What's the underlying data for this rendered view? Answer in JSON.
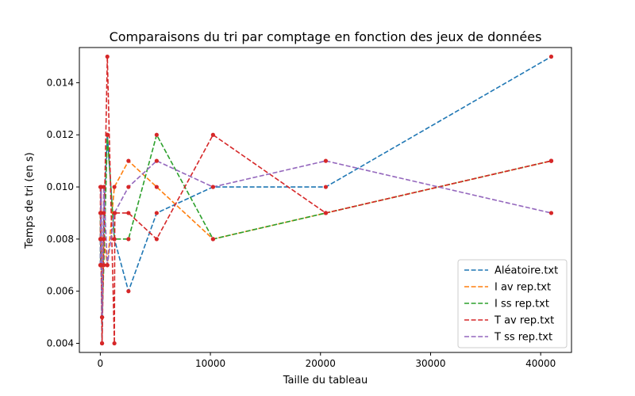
{
  "chart_data": {
    "type": "line",
    "title": "Comparaisons du tri par comptage en fonction des jeux de données",
    "xlabel": "Taille du tableau",
    "ylabel": "Temps de tri (en s)",
    "xlim": [
      -1900,
      42800
    ],
    "ylim": [
      0.00365,
      0.01535
    ],
    "xticks": [
      0,
      10000,
      20000,
      30000,
      40000
    ],
    "xtick_labels": [
      "0",
      "10000",
      "20000",
      "30000",
      "40000"
    ],
    "yticks": [
      0.004,
      0.006,
      0.008,
      0.01,
      0.012,
      0.014
    ],
    "ytick_labels": [
      "0.004",
      "0.006",
      "0.008",
      "0.010",
      "0.012",
      "0.014"
    ],
    "grid": false,
    "legend_position": "lower-right",
    "marker_color": "#d62728",
    "series": [
      {
        "name": "Aléatoire.txt",
        "color": "#1f77b4",
        "x": [
          10,
          20,
          40,
          80,
          160,
          320,
          640,
          1280,
          2560,
          5120,
          10240,
          20480,
          40960
        ],
        "y": [
          0.007,
          0.008,
          0.01,
          0.007,
          0.004,
          0.009,
          0.012,
          0.008,
          0.006,
          0.009,
          0.01,
          0.01,
          0.015
        ]
      },
      {
        "name": "I av rep.txt",
        "color": "#ff7f0e",
        "x": [
          10,
          20,
          40,
          80,
          160,
          320,
          640,
          1280,
          2560,
          5120,
          10240,
          20480,
          40960
        ],
        "y": [
          0.008,
          0.009,
          0.007,
          0.01,
          0.005,
          0.008,
          0.007,
          0.01,
          0.011,
          0.01,
          0.008,
          0.009,
          0.011
        ]
      },
      {
        "name": "I ss rep.txt",
        "color": "#2ca02c",
        "x": [
          10,
          20,
          40,
          80,
          160,
          320,
          640,
          1280,
          2560,
          5120,
          10240,
          20480,
          40960
        ],
        "y": [
          0.009,
          0.007,
          0.008,
          0.009,
          0.005,
          0.007,
          0.012,
          0.008,
          0.008,
          0.012,
          0.008,
          0.009,
          0.011
        ]
      },
      {
        "name": "T av rep.txt",
        "color": "#d62728",
        "x": [
          10,
          20,
          40,
          80,
          160,
          320,
          640,
          1280,
          1320,
          2560,
          5120,
          10240,
          20480,
          40960
        ],
        "y": [
          0.01,
          0.008,
          0.009,
          0.007,
          0.004,
          0.008,
          0.015,
          0.004,
          0.009,
          0.009,
          0.008,
          0.012,
          0.009,
          0.011
        ]
      },
      {
        "name": "T ss rep.txt",
        "color": "#9467bd",
        "x": [
          10,
          20,
          40,
          80,
          160,
          320,
          640,
          1280,
          2560,
          5120,
          10240,
          20480,
          40960
        ],
        "y": [
          0.007,
          0.008,
          0.009,
          0.01,
          0.005,
          0.01,
          0.007,
          0.009,
          0.01,
          0.011,
          0.01,
          0.011,
          0.009
        ]
      }
    ]
  }
}
